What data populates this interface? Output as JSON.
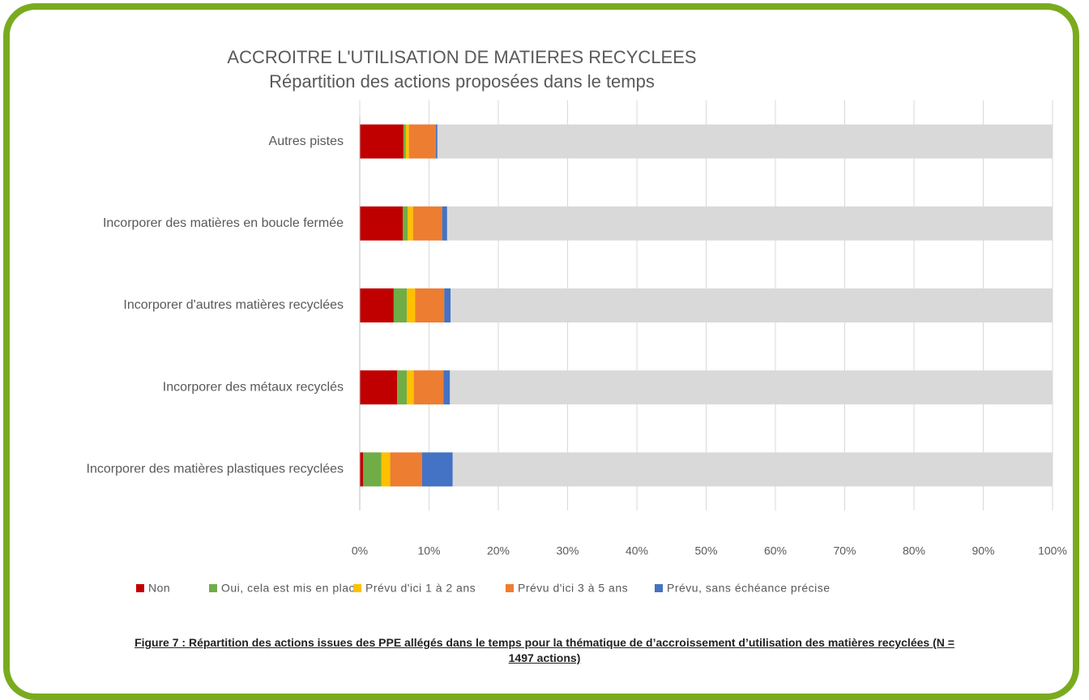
{
  "chart_data": {
    "type": "stacked_bar_horizontal",
    "title": "ACCROITRE L'UTILISATION DE MATIERES RECYCLEES",
    "subtitle": "Répartition des actions proposées dans le temps",
    "categories": [
      "Autres pistes",
      "Incorporer des matières en boucle fermée",
      "Incorporer d'autres matières recyclées",
      "Incorporer des métaux recyclés",
      "Incorporer des matières plastiques recyclées"
    ],
    "series": [
      {
        "name": "Non",
        "color": "#c00000",
        "values": [
          6.3,
          6.2,
          4.9,
          5.4,
          0.5
        ]
      },
      {
        "name": "Oui, cela est mis en place",
        "color": "#70ad47",
        "values": [
          0.35,
          0.7,
          1.9,
          1.4,
          2.6
        ]
      },
      {
        "name": "Prévu d'ici 1 à 2 ans",
        "color": "#ffc000",
        "values": [
          0.45,
          0.8,
          1.2,
          1.0,
          1.3
        ]
      },
      {
        "name": "Prévu d'ici 3 à 5 ans",
        "color": "#ed7d31",
        "values": [
          3.9,
          4.2,
          4.2,
          4.3,
          4.6
        ]
      },
      {
        "name": "Prévu, sans échéance précise",
        "color": "#4472c4",
        "values": [
          0.2,
          0.7,
          0.9,
          0.9,
          4.4
        ]
      }
    ],
    "track_color": "#d9d9d9",
    "xlim": [
      0,
      100
    ],
    "xticks": [
      {
        "value": 0,
        "label": "0%"
      },
      {
        "value": 10,
        "label": "10%"
      },
      {
        "value": 20,
        "label": "20%"
      },
      {
        "value": 30,
        "label": "30%"
      },
      {
        "value": 40,
        "label": "40%"
      },
      {
        "value": 50,
        "label": "50%"
      },
      {
        "value": 60,
        "label": "60%"
      },
      {
        "value": 70,
        "label": "70%"
      },
      {
        "value": 80,
        "label": "80%"
      },
      {
        "value": 90,
        "label": "90%"
      },
      {
        "value": 100,
        "label": "100%"
      }
    ],
    "grid": true,
    "legend": "bottom",
    "caption": "Figure 7 : Répartition des actions issues des PPE allégés dans le temps pour la thématique de d’accroissement d’utilisation des matières recyclées (N = 1497 actions)"
  }
}
